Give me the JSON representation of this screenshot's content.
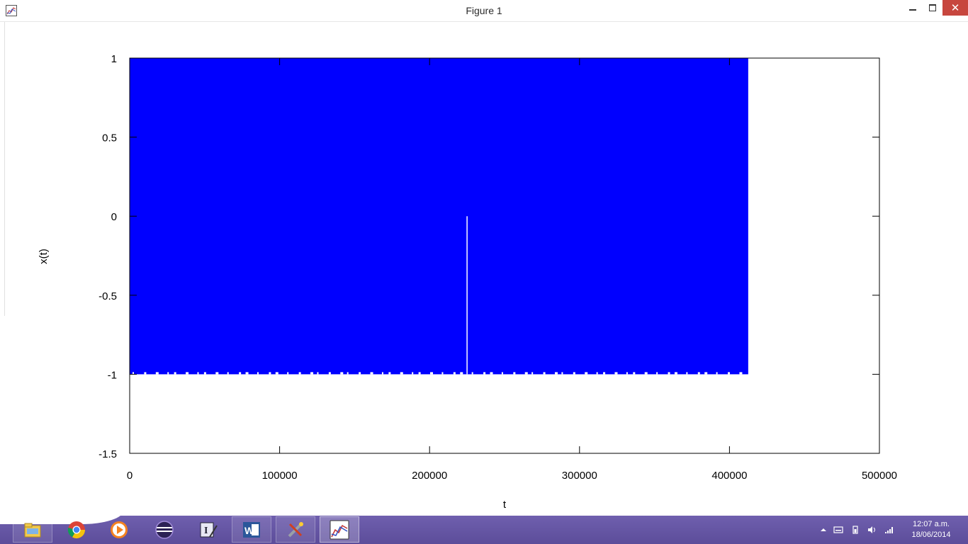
{
  "window": {
    "title": "Figure 1",
    "close_glyph": "✕"
  },
  "chart_data": {
    "type": "line",
    "xlabel": "t",
    "ylabel": "x(t)",
    "xlim": [
      0,
      500000
    ],
    "ylim": [
      -1.5,
      1
    ],
    "xticks": [
      "0",
      "100000",
      "200000",
      "300000",
      "400000",
      "500000"
    ],
    "yticks": [
      "1",
      "0.5",
      "0",
      "-0.5",
      "-1",
      "-1.5"
    ],
    "xtick_values": [
      0,
      100000,
      200000,
      300000,
      400000,
      500000
    ],
    "ytick_values": [
      1,
      0.5,
      0,
      -0.5,
      -1,
      -1.5
    ],
    "series": [
      {
        "color": "#0000ff",
        "description": "dense oscillating signal between -1 and 1",
        "x_extent": [
          0,
          412500
        ],
        "y_extent": [
          -1,
          1
        ],
        "gap_at_x": 225000
      }
    ],
    "grid": false
  },
  "taskbar": {
    "items": [
      {
        "icon": "file-explorer-icon"
      },
      {
        "icon": "chrome-icon"
      },
      {
        "icon": "media-player-icon"
      },
      {
        "icon": "eclipse-icon"
      },
      {
        "icon": "text-editor-icon"
      },
      {
        "icon": "word-icon"
      },
      {
        "icon": "tools-icon"
      },
      {
        "icon": "figure-plot-icon",
        "active": true
      }
    ],
    "clock_time": "12:07 a.m.",
    "clock_date": "18/06/2014"
  },
  "colors": {
    "signal": "#0000ff",
    "taskbar": "#6454a4",
    "close_button": "#c7463e"
  }
}
